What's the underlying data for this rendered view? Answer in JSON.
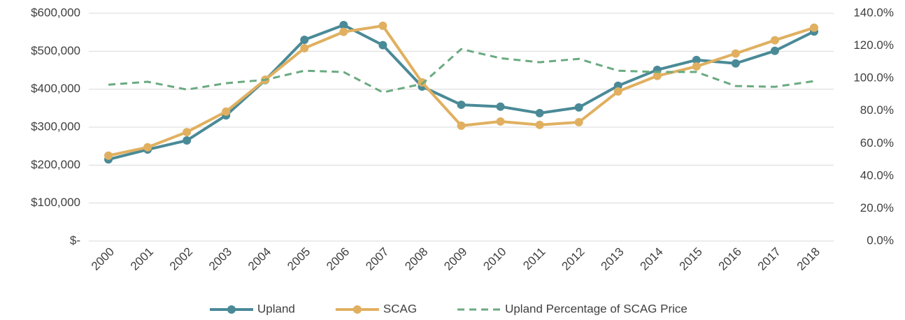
{
  "chart_data": {
    "type": "line",
    "categories": [
      "2000",
      "2001",
      "2002",
      "2003",
      "2004",
      "2005",
      "2006",
      "2007",
      "2008",
      "2009",
      "2010",
      "2011",
      "2012",
      "2013",
      "2014",
      "2015",
      "2016",
      "2017",
      "2018"
    ],
    "series": [
      {
        "name": "Upland",
        "color": "#4a8a97",
        "markers": true,
        "dashed": false,
        "values": [
          215000,
          241000,
          265000,
          331000,
          424000,
          530000,
          569000,
          516000,
          407000,
          359000,
          354000,
          337000,
          352000,
          409000,
          451000,
          477000,
          468000,
          501000,
          552000
        ]
      },
      {
        "name": "SCAG",
        "color": "#e0b060",
        "markers": true,
        "dashed": false,
        "values": [
          225000,
          247000,
          287000,
          341000,
          425000,
          508000,
          551000,
          567000,
          418000,
          304000,
          315000,
          306000,
          313000,
          394000,
          435000,
          460000,
          494000,
          529000,
          562000
        ]
      },
      {
        "name": "Upland Percentage of SCAG Price",
        "color": "#6aaa80",
        "markers": false,
        "dashed": true,
        "axis": "y2",
        "values": [
          96.1,
          97.9,
          93.1,
          97.0,
          99.1,
          104.7,
          103.9,
          91.4,
          96.6,
          118.0,
          112.4,
          109.9,
          112.0,
          104.7,
          103.9,
          103.9,
          95.3,
          94.8,
          98.3
        ]
      }
    ],
    "ylim": [
      0,
      600000
    ],
    "yticks": [
      {
        "value": 0,
        "label": "$-"
      },
      {
        "value": 100000,
        "label": "$100,000"
      },
      {
        "value": 200000,
        "label": "$200,000"
      },
      {
        "value": 300000,
        "label": "$300,000"
      },
      {
        "value": 400000,
        "label": "$400,000"
      },
      {
        "value": 500000,
        "label": "$500,000"
      },
      {
        "value": 600000,
        "label": "$600,000"
      }
    ],
    "y2lim": [
      0,
      140
    ],
    "y2ticks": [
      {
        "value": 0,
        "label": "0.0%"
      },
      {
        "value": 20,
        "label": "20.0%"
      },
      {
        "value": 40,
        "label": "40.0%"
      },
      {
        "value": 60,
        "label": "60.0%"
      },
      {
        "value": 80,
        "label": "80.0%"
      },
      {
        "value": 100,
        "label": "100.0%"
      },
      {
        "value": 120,
        "label": "120.0%"
      },
      {
        "value": 140,
        "label": "140.0%"
      }
    ],
    "grid": true,
    "legend": "bottom"
  }
}
